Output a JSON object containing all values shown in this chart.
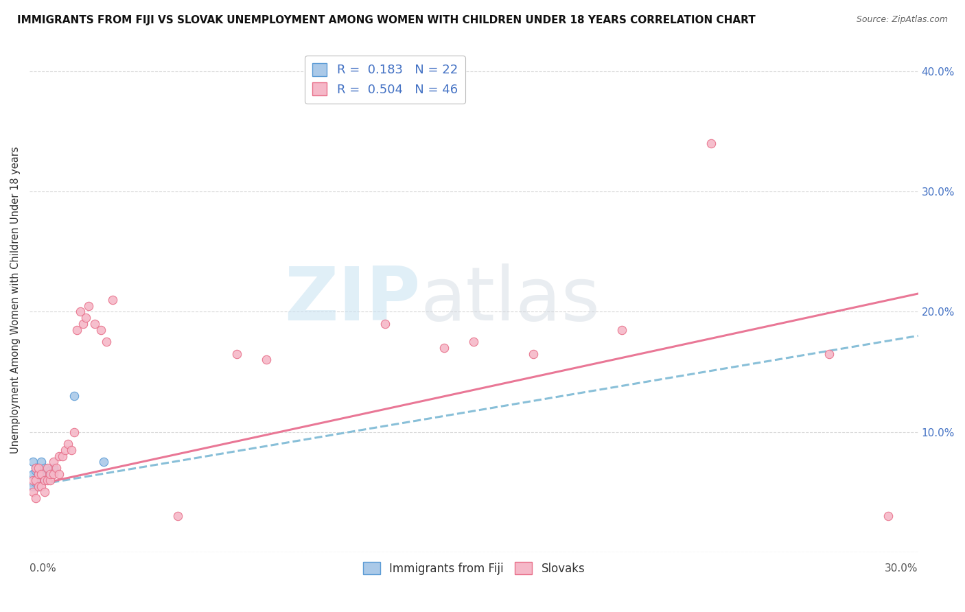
{
  "title": "IMMIGRANTS FROM FIJI VS SLOVAK UNEMPLOYMENT AMONG WOMEN WITH CHILDREN UNDER 18 YEARS CORRELATION CHART",
  "source": "Source: ZipAtlas.com",
  "ylabel": "Unemployment Among Women with Children Under 18 years",
  "xmin": 0.0,
  "xmax": 0.3,
  "ymin": 0.0,
  "ymax": 0.42,
  "yticks": [
    0.0,
    0.1,
    0.2,
    0.3,
    0.4
  ],
  "fiji_R": 0.183,
  "fiji_N": 22,
  "slovak_R": 0.504,
  "slovak_N": 46,
  "fiji_color": "#aac9e8",
  "fiji_color_dark": "#5b9bd5",
  "slovak_color": "#f5b8c8",
  "slovak_color_dark": "#e8708a",
  "trendline_fiji_color": "#82bcd6",
  "trendline_slovak_color": "#e87090",
  "fiji_scatter_x": [
    0.001,
    0.001,
    0.001,
    0.002,
    0.002,
    0.002,
    0.002,
    0.003,
    0.003,
    0.003,
    0.003,
    0.004,
    0.004,
    0.004,
    0.005,
    0.005,
    0.005,
    0.006,
    0.007,
    0.008,
    0.015,
    0.025
  ],
  "fiji_scatter_y": [
    0.065,
    0.055,
    0.075,
    0.06,
    0.068,
    0.058,
    0.07,
    0.065,
    0.06,
    0.07,
    0.055,
    0.065,
    0.075,
    0.06,
    0.068,
    0.06,
    0.07,
    0.065,
    0.068,
    0.07,
    0.13,
    0.075
  ],
  "slovak_scatter_x": [
    0.001,
    0.001,
    0.002,
    0.002,
    0.002,
    0.003,
    0.003,
    0.003,
    0.004,
    0.004,
    0.005,
    0.005,
    0.006,
    0.006,
    0.007,
    0.007,
    0.008,
    0.008,
    0.009,
    0.01,
    0.01,
    0.011,
    0.012,
    0.013,
    0.014,
    0.015,
    0.016,
    0.017,
    0.018,
    0.019,
    0.02,
    0.022,
    0.024,
    0.026,
    0.028,
    0.05,
    0.07,
    0.08,
    0.12,
    0.14,
    0.15,
    0.17,
    0.2,
    0.23,
    0.27,
    0.29
  ],
  "slovak_scatter_y": [
    0.05,
    0.06,
    0.045,
    0.06,
    0.07,
    0.055,
    0.065,
    0.07,
    0.055,
    0.065,
    0.05,
    0.06,
    0.06,
    0.07,
    0.06,
    0.065,
    0.065,
    0.075,
    0.07,
    0.08,
    0.065,
    0.08,
    0.085,
    0.09,
    0.085,
    0.1,
    0.185,
    0.2,
    0.19,
    0.195,
    0.205,
    0.19,
    0.185,
    0.175,
    0.21,
    0.03,
    0.165,
    0.16,
    0.19,
    0.17,
    0.175,
    0.165,
    0.185,
    0.34,
    0.165,
    0.03
  ],
  "trendline_fiji_x0": 0.0,
  "trendline_fiji_y0": 0.055,
  "trendline_fiji_x1": 0.3,
  "trendline_fiji_y1": 0.18,
  "trendline_slovak_x0": 0.0,
  "trendline_slovak_y0": 0.055,
  "trendline_slovak_x1": 0.3,
  "trendline_slovak_y1": 0.215
}
